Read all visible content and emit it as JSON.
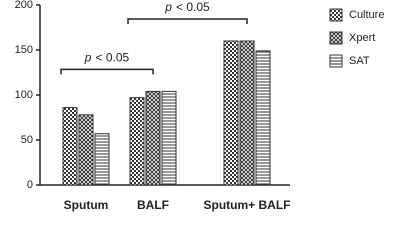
{
  "chart_data": {
    "type": "bar",
    "categories": [
      "Sputum",
      "BALF",
      "Sputum+ BALF"
    ],
    "series": [
      {
        "name": "Culture",
        "color": "#333333",
        "pattern": "checker",
        "values": [
          86,
          97,
          160
        ]
      },
      {
        "name": "Xpert",
        "color": "#333333",
        "pattern": "cross",
        "values": [
          78,
          104,
          160
        ]
      },
      {
        "name": "SAT",
        "color": "#333333",
        "pattern": "hstripe",
        "values": [
          57,
          104,
          149
        ]
      }
    ],
    "ylim": [
      0,
      200
    ],
    "yticks": [
      0,
      50,
      100,
      150,
      200
    ],
    "grid": false,
    "legend": "right",
    "annotations": [
      {
        "symbol": "p",
        "text": "< 0.05",
        "from": 0,
        "to": 1
      },
      {
        "symbol": "p",
        "text": "< 0.05",
        "from": 1,
        "to": 2
      }
    ]
  }
}
